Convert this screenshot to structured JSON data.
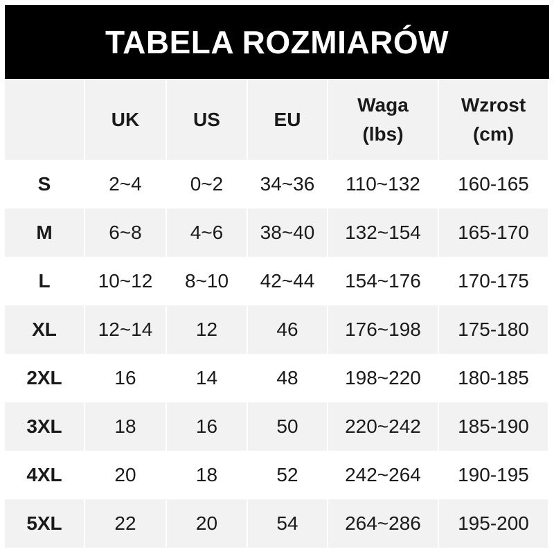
{
  "title": "TABELA ROZMIARÓW",
  "columns": [
    "",
    "UK",
    "US",
    "EU",
    "Waga\n(lbs)",
    "Wzrost\n(cm)"
  ],
  "rows": [
    [
      "S",
      "2~4",
      "0~2",
      "34~36",
      "110~132",
      "160-165"
    ],
    [
      "M",
      "6~8",
      "4~6",
      "38~40",
      "132~154",
      "165-170"
    ],
    [
      "L",
      "10~12",
      "8~10",
      "42~44",
      "154~176",
      "170-175"
    ],
    [
      "XL",
      "12~14",
      "12",
      "46",
      "176~198",
      "175-180"
    ],
    [
      "2XL",
      "16",
      "14",
      "48",
      "198~220",
      "180-185"
    ],
    [
      "3XL",
      "18",
      "16",
      "50",
      "220~242",
      "185-190"
    ],
    [
      "4XL",
      "20",
      "18",
      "52",
      "242~264",
      "190-195"
    ],
    [
      "5XL",
      "22",
      "20",
      "54",
      "264~286",
      "195-200"
    ]
  ],
  "colors": {
    "header_bg": "#000000",
    "header_text": "#ffffff",
    "stripe": "#f2f2f2"
  }
}
